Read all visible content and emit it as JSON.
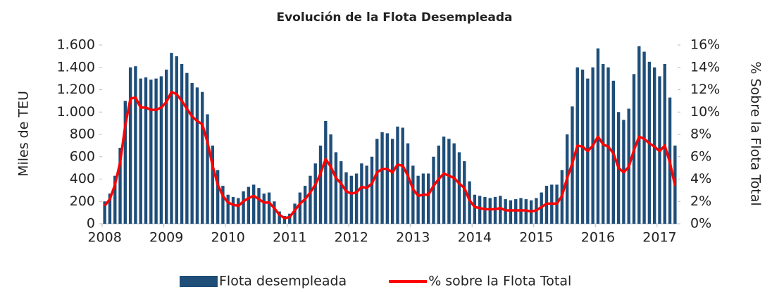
{
  "chart_data": {
    "type": "bar_line",
    "title": "Evolución de la Flota Desempleada",
    "ylabel": "Miles de TEU",
    "y2label": "% Sobre la Flota Total",
    "categories": [
      "2008",
      null,
      null,
      null,
      null,
      null,
      null,
      null,
      null,
      null,
      null,
      null,
      "2009",
      null,
      null,
      null,
      null,
      null,
      null,
      null,
      null,
      null,
      null,
      null,
      "2010",
      null,
      null,
      null,
      null,
      null,
      null,
      null,
      null,
      null,
      null,
      null,
      "2011",
      null,
      null,
      null,
      null,
      null,
      null,
      null,
      null,
      null,
      null,
      null,
      "2012",
      null,
      null,
      null,
      null,
      null,
      null,
      null,
      null,
      null,
      null,
      null,
      "2013",
      null,
      null,
      null,
      null,
      null,
      null,
      null,
      null,
      null,
      null,
      null,
      "2014",
      null,
      null,
      null,
      null,
      null,
      null,
      null,
      null,
      null,
      null,
      null,
      "2015",
      null,
      null,
      null,
      null,
      null,
      null,
      null,
      null,
      null,
      null,
      null,
      "2016",
      null,
      null,
      null,
      null,
      null,
      null,
      null,
      null,
      null,
      null,
      null,
      "2017",
      null,
      null,
      null
    ],
    "series": [
      {
        "name": "Flota desempleada",
        "kind": "bar",
        "color": "#1f4e79",
        "values": [
          200,
          270,
          430,
          680,
          1100,
          1400,
          1410,
          1300,
          1310,
          1290,
          1300,
          1320,
          1380,
          1530,
          1500,
          1430,
          1350,
          1260,
          1220,
          1180,
          980,
          700,
          480,
          340,
          260,
          240,
          230,
          290,
          330,
          350,
          320,
          270,
          280,
          200,
          110,
          70,
          90,
          180,
          280,
          340,
          430,
          540,
          700,
          920,
          800,
          640,
          560,
          460,
          430,
          450,
          540,
          520,
          600,
          760,
          820,
          810,
          760,
          870,
          860,
          720,
          520,
          430,
          450,
          450,
          600,
          700,
          780,
          760,
          720,
          640,
          560,
          380,
          260,
          250,
          240,
          230,
          240,
          250,
          220,
          210,
          220,
          230,
          220,
          210,
          230,
          280,
          340,
          350,
          350,
          480,
          800,
          1050,
          1400,
          1380,
          1300,
          1400,
          1570,
          1430,
          1400,
          1280,
          1000,
          930,
          1030,
          1340,
          1590,
          1540,
          1450,
          1400,
          1320,
          1430,
          1130,
          700
        ]
      },
      {
        "name": "% sobre la Flota Total",
        "kind": "line",
        "axis": "y2",
        "color": "#ff0000",
        "values": [
          1.6,
          2.2,
          3.5,
          5.5,
          8.8,
          11.2,
          11.3,
          10.4,
          10.4,
          10.2,
          10.2,
          10.4,
          10.9,
          11.8,
          11.6,
          11.0,
          10.3,
          9.6,
          9.2,
          8.9,
          7.3,
          5.2,
          3.5,
          2.5,
          1.9,
          1.7,
          1.6,
          2.0,
          2.3,
          2.5,
          2.2,
          1.9,
          1.9,
          1.4,
          0.8,
          0.5,
          0.6,
          1.2,
          1.8,
          2.2,
          2.8,
          3.5,
          4.5,
          5.8,
          5.1,
          4.1,
          3.6,
          2.9,
          2.7,
          2.8,
          3.3,
          3.2,
          3.6,
          4.6,
          4.9,
          4.9,
          4.6,
          5.3,
          5.2,
          4.3,
          3.1,
          2.5,
          2.6,
          2.6,
          3.4,
          4.0,
          4.5,
          4.3,
          4.1,
          3.6,
          3.2,
          2.1,
          1.5,
          1.4,
          1.3,
          1.3,
          1.3,
          1.4,
          1.2,
          1.2,
          1.2,
          1.2,
          1.2,
          1.1,
          1.2,
          1.5,
          1.8,
          1.8,
          1.8,
          2.5,
          4.1,
          5.4,
          7.0,
          6.9,
          6.5,
          7.0,
          7.8,
          7.1,
          6.9,
          6.3,
          5.0,
          4.6,
          5.1,
          6.6,
          7.8,
          7.6,
          7.2,
          6.9,
          6.5,
          7.0,
          5.5,
          3.4
        ]
      }
    ],
    "ylim": [
      0,
      1600
    ],
    "yticks": [
      0,
      200,
      400,
      600,
      800,
      {
        "value": 1000,
        "label": "1.000"
      },
      {
        "value": 1200,
        "label": "1.200"
      },
      {
        "value": 1400,
        "label": "1.400"
      },
      {
        "value": 1600,
        "label": "1.600"
      }
    ],
    "y2lim": [
      0,
      16
    ],
    "y2ticks": [
      {
        "value": 0,
        "label": "0%"
      },
      {
        "value": 2,
        "label": "2%"
      },
      {
        "value": 4,
        "label": "4%"
      },
      {
        "value": 6,
        "label": "6%"
      },
      {
        "value": 8,
        "label": "8%"
      },
      {
        "value": 10,
        "label": "10%"
      },
      {
        "value": 12,
        "label": "12%"
      },
      {
        "value": 14,
        "label": "14%"
      },
      {
        "value": 16,
        "label": "16%"
      }
    ],
    "grid": false,
    "legend": "bottom"
  }
}
